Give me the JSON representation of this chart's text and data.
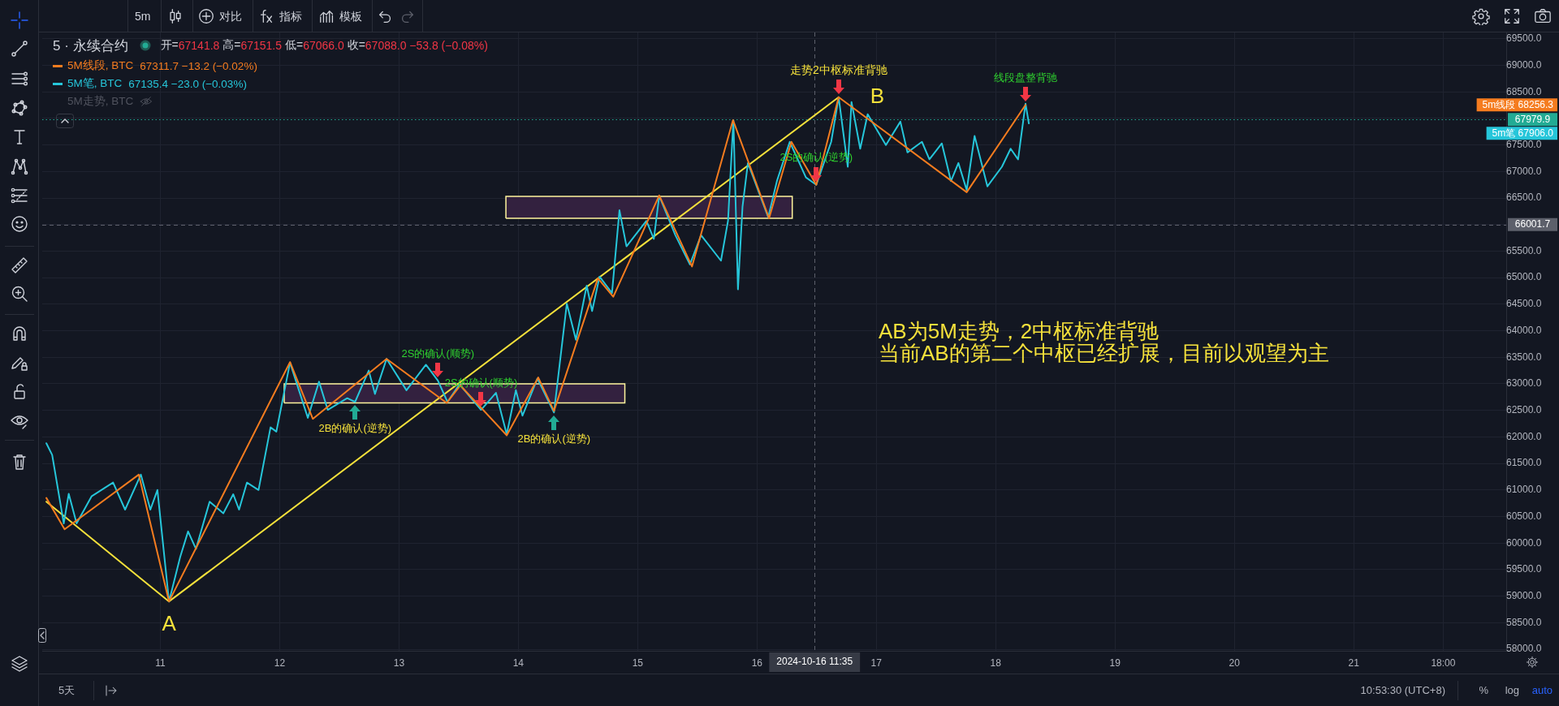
{
  "chart_data": {
    "type": "line",
    "title": "5 · 永续合约",
    "xlim": [
      "2024-10-10T00:15",
      "2024-10-22T06:40"
    ],
    "xticks": [
      {
        "value": "2024-10-11",
        "label": "11"
      },
      {
        "value": "2024-10-12",
        "label": "12"
      },
      {
        "value": "2024-10-13",
        "label": "13"
      },
      {
        "value": "2024-10-14",
        "label": "14"
      },
      {
        "value": "2024-10-15",
        "label": "15"
      },
      {
        "value": "2024-10-16",
        "label": "16"
      },
      {
        "value": "2024-10-17",
        "label": "17"
      },
      {
        "value": "2024-10-18",
        "label": "18"
      },
      {
        "value": "2024-10-19",
        "label": "19"
      },
      {
        "value": "2024-10-20",
        "label": "20"
      },
      {
        "value": "2024-10-21",
        "label": "21"
      },
      {
        "value": "2024-10-21T18:00",
        "label": "18:00"
      }
    ],
    "ylim": [
      57970,
      69620
    ],
    "yticks": [
      {
        "value": 58000,
        "label": "58000.0"
      },
      {
        "value": 58500,
        "label": "58500.0"
      },
      {
        "value": 59000,
        "label": "59000.0"
      },
      {
        "value": 59500,
        "label": "59500.0"
      },
      {
        "value": 60000,
        "label": "60000.0"
      },
      {
        "value": 60500,
        "label": "60500.0"
      },
      {
        "value": 61000,
        "label": "61000.0"
      },
      {
        "value": 61500,
        "label": "61500.0"
      },
      {
        "value": 62000,
        "label": "62000.0"
      },
      {
        "value": 62500,
        "label": "62500.0"
      },
      {
        "value": 63000,
        "label": "63000.0"
      },
      {
        "value": 63500,
        "label": "63500.0"
      },
      {
        "value": 64000,
        "label": "64000.0"
      },
      {
        "value": 64500,
        "label": "64500.0"
      },
      {
        "value": 65000,
        "label": "65000.0"
      },
      {
        "value": 65500,
        "label": "65500.0"
      },
      {
        "value": 66000,
        "label": null
      },
      {
        "value": 66500,
        "label": "66500.0"
      },
      {
        "value": 67000,
        "label": "67000.0"
      },
      {
        "value": 67500,
        "label": "67500.0"
      },
      {
        "value": 68000,
        "label": null
      },
      {
        "value": 68500,
        "label": "68500.0"
      },
      {
        "value": 69000,
        "label": "69000.0"
      },
      {
        "value": 69500,
        "label": "69500.0"
      }
    ],
    "grid": true,
    "legend": "top left",
    "series": [
      {
        "name": "5M线段, BTC",
        "color": "#f57c1f",
        "x": [
          "2024-10-10T01:05",
          "2024-10-10T04:45",
          "2024-10-10T19:40",
          "2024-10-11T01:45",
          "2024-10-12T02:05",
          "2024-10-12T06:40",
          "2024-10-12T21:30",
          "2024-10-13T09:35",
          "2024-10-13T12:20",
          "2024-10-13T21:40",
          "2024-10-14T04:00",
          "2024-10-14T07:10",
          "2024-10-14T16:00",
          "2024-10-14T19:05",
          "2024-10-15T04:20",
          "2024-10-15T10:55",
          "2024-10-15T19:10",
          "2024-10-16T02:25",
          "2024-10-16T06:55",
          "2024-10-16T11:55",
          "2024-10-16T16:25",
          "2024-10-17T18:10",
          "2024-10-18T06:00"
        ],
        "values": [
          60850,
          60260,
          61290,
          58900,
          63410,
          62340,
          63470,
          62640,
          62970,
          62030,
          63120,
          62490,
          64990,
          64640,
          66550,
          65210,
          67970,
          66120,
          67560,
          66750,
          68400,
          66610,
          68256.3
        ]
      },
      {
        "name": "5M笔, BTC",
        "color": "#26c6da",
        "x": [
          "2024-10-10T01:05",
          "2024-10-10T02:15",
          "2024-10-10T04:35",
          "2024-10-10T05:35",
          "2024-10-10T07:10",
          "2024-10-10T10:10",
          "2024-10-10T14:30",
          "2024-10-10T16:55",
          "2024-10-10T20:05",
          "2024-10-10T22:00",
          "2024-10-10T23:25",
          "2024-10-11T01:45",
          "2024-10-11T04:00",
          "2024-10-11T05:35",
          "2024-10-11T07:10",
          "2024-10-11T09:55",
          "2024-10-11T12:40",
          "2024-10-11T14:40",
          "2024-10-11T15:50",
          "2024-10-11T17:25",
          "2024-10-11T19:45",
          "2024-10-11T22:10",
          "2024-10-11T23:20",
          "2024-10-12T02:05",
          "2024-10-12T05:40",
          "2024-10-12T07:55",
          "2024-10-12T09:40",
          "2024-10-12T13:35",
          "2024-10-12T15:10",
          "2024-10-12T17:55",
          "2024-10-12T19:10",
          "2024-10-12T21:30",
          "2024-10-13T01:30",
          "2024-10-13T05:25",
          "2024-10-13T07:50",
          "2024-10-13T09:45",
          "2024-10-13T12:10",
          "2024-10-13T16:30",
          "2024-10-13T19:30",
          "2024-10-13T21:40",
          "2024-10-13T23:30",
          "2024-10-14T00:50",
          "2024-10-14T03:50",
          "2024-10-14T07:10",
          "2024-10-14T09:45",
          "2024-10-14T11:35",
          "2024-10-14T13:45",
          "2024-10-14T14:50",
          "2024-10-14T16:20",
          "2024-10-14T18:50",
          "2024-10-14T20:20",
          "2024-10-14T21:45",
          "2024-10-15T01:45",
          "2024-10-15T03:15",
          "2024-10-15T04:20",
          "2024-10-15T07:35",
          "2024-10-15T10:30",
          "2024-10-15T12:45",
          "2024-10-15T16:45",
          "2024-10-15T18:10",
          "2024-10-15T19:15",
          "2024-10-15T20:10",
          "2024-10-15T21:05",
          "2024-10-15T22:10",
          "2024-10-16T02:15",
          "2024-10-16T04:00",
          "2024-10-16T06:35",
          "2024-10-16T09:50",
          "2024-10-16T11:55",
          "2024-10-16T14:55",
          "2024-10-16T16:25",
          "2024-10-16T18:15",
          "2024-10-16T19:00",
          "2024-10-16T20:45",
          "2024-10-16T22:15",
          "2024-10-17T01:55",
          "2024-10-17T04:50",
          "2024-10-17T06:15",
          "2024-10-17T09:10",
          "2024-10-17T10:40",
          "2024-10-17T13:10",
          "2024-10-17T15:00",
          "2024-10-17T16:30",
          "2024-10-17T18:10",
          "2024-10-17T19:45",
          "2024-10-17T22:20",
          "2024-10-18T01:15",
          "2024-10-18T03:00",
          "2024-10-18T04:30",
          "2024-10-18T06:00",
          "2024-10-18T06:40"
        ],
        "values": [
          61880,
          61660,
          60370,
          60930,
          60370,
          60880,
          61140,
          60630,
          61290,
          60630,
          61000,
          58900,
          59740,
          60220,
          59890,
          60780,
          60560,
          60920,
          60630,
          61140,
          61000,
          62180,
          62100,
          63400,
          62360,
          63040,
          62510,
          62730,
          62660,
          63250,
          62810,
          63470,
          62880,
          63360,
          63060,
          62660,
          62990,
          62510,
          62830,
          62050,
          62880,
          62400,
          63100,
          62460,
          64510,
          63830,
          64850,
          64370,
          65020,
          64710,
          66270,
          65590,
          66070,
          65730,
          66540,
          65800,
          65250,
          65800,
          65320,
          66070,
          67970,
          64780,
          66340,
          67160,
          66140,
          66820,
          67560,
          66890,
          66750,
          67560,
          68400,
          67090,
          68310,
          67430,
          68080,
          67500,
          67940,
          67360,
          67560,
          67230,
          67530,
          66820,
          67160,
          66650,
          67670,
          66720,
          67090,
          67430,
          67230,
          68280,
          67906.0
        ]
      },
      {
        "color": "#f5e13b",
        "x": [
          "2024-10-10T01:05",
          "2024-10-11T01:45",
          "2024-10-16T16:25"
        ],
        "values": [
          60780,
          58900,
          68400
        ]
      },
      {
        "type": "area",
        "color": "#33213f",
        "x": [
          "2024-10-12T00:55",
          "2024-10-12T00:55",
          "2024-10-14T21:25",
          "2024-10-14T21:25",
          "2024-10-12T00:55"
        ],
        "values": [
          62640,
          63000,
          63000,
          62640,
          62640
        ]
      },
      {
        "type": "area",
        "color": "#33213f",
        "x": [
          "2024-10-13T21:30",
          "2024-10-13T21:30",
          "2024-10-16T07:05",
          "2024-10-16T07:05",
          "2024-10-13T21:30"
        ],
        "values": [
          66120,
          66530,
          66530,
          66120,
          66120
        ]
      }
    ],
    "ref_lines": [
      {
        "axis": "y",
        "value": 67979.9,
        "label": "67979.9",
        "color": "#22ab94",
        "line_style": "dotted"
      },
      {
        "axis": "x",
        "value": "2024-10-16T11:35",
        "label": "2024-10-16 11:35",
        "color": "#5d606b",
        "line_style": "dashed"
      },
      {
        "axis": "y",
        "value": 66001.7,
        "label": "66001.7",
        "color": "#5d606b",
        "line_style": "dashed"
      }
    ],
    "annotations": [
      "开=67141.8 高=67151.5 低=67066.0 收=67088.0 −53.8 (−0.08%)",
      "67311.7 −13.2 (−0.02%)",
      "67135.4 −23.0 (−0.03%)",
      "5M走势, BTC",
      "AB为5M走势，2中枢标准背驰",
      "当前AB的第二个中枢已经扩展，目前以观望为主",
      "5m",
      "对比",
      "指标",
      "模板",
      "5天",
      "10:53:30 (UTC+8)",
      "%",
      "log",
      "auto",
      "5m线段 68256.3",
      "5m笔 67906.0",
      {
        "text": "走势2中枢标准背驰",
        "x": "2024-10-16T16:25",
        "y": 68400
      },
      {
        "text": "线段盘整背驰",
        "x": "2024-10-18T06:00",
        "y": 68256.3
      },
      {
        "text": "2S的确认(逆势)",
        "x": "2024-10-16T11:55",
        "y": 66750
      },
      {
        "text": "2S的确认(顺势)",
        "x": "2024-10-13T07:50",
        "y": 63060
      },
      {
        "text": "2S的确认(顺势)",
        "x": "2024-10-13T16:30",
        "y": 62510
      },
      {
        "text": "2B的确认(逆势)",
        "x": "2024-10-12T15:10",
        "y": 62660
      },
      {
        "text": "2B的确认(逆势)",
        "x": "2024-10-14T07:10",
        "y": 62460
      },
      {
        "text": "A",
        "x": "2024-10-11T01:45",
        "y": 58900
      },
      {
        "text": "B",
        "x": "2024-10-16T16:25",
        "y": 68400
      }
    ]
  }
}
